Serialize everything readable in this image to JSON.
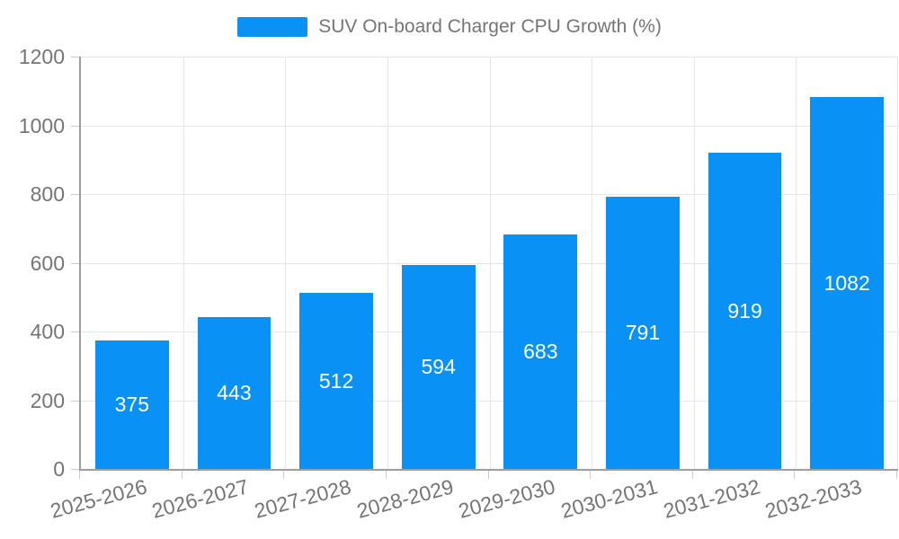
{
  "chart_data": {
    "type": "bar",
    "title": "SUV On-board Charger CPU Growth (%)",
    "legend": {
      "entries": [
        "SUV On-board Charger CPU Growth (%)"
      ],
      "position": "top-center"
    },
    "categories": [
      "2025-2026",
      "2026-2027",
      "2027-2028",
      "2028-2029",
      "2029-2030",
      "2030-2031",
      "2031-2032",
      "2032-2033"
    ],
    "series": [
      {
        "name": "SUV On-board Charger CPU Growth (%)",
        "values": [
          375,
          443,
          512,
          594,
          683,
          791,
          919,
          1082
        ]
      }
    ],
    "value_labels_shown": true,
    "xlabel": "",
    "ylabel": "",
    "ylim": [
      0,
      1200
    ],
    "yticks": [
      0,
      200,
      400,
      600,
      800,
      1000,
      1200
    ],
    "grid": true,
    "x_label_rotation_deg": -15,
    "colors": {
      "bar": "#0991f5",
      "bar_value_text": "#ffffff",
      "axis_line": "#9e9e9e",
      "gridline": "#e6e6e6",
      "tick_mark": "#cccccc",
      "tick_text": "#757575",
      "legend_text": "#757575",
      "background": "#ffffff"
    }
  }
}
